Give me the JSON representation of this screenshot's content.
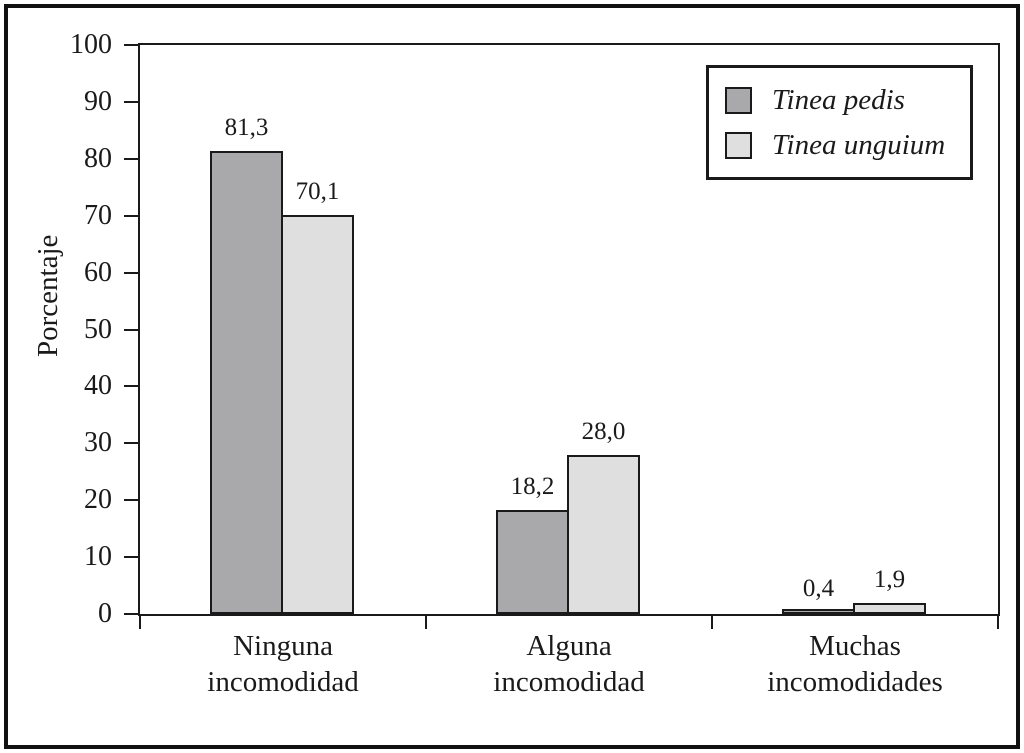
{
  "colors": {
    "background": "#ffffff",
    "frame": "#111111",
    "axis": "#1a1a1a",
    "text": "#1a1a1a"
  },
  "chart_data": {
    "type": "bar",
    "title": "",
    "ylabel": "Porcentaje",
    "xlabel": "",
    "ylim": [
      0,
      100
    ],
    "ytick_step": 10,
    "grid": false,
    "legend_position": "top-right",
    "decimal_separator": ",",
    "categories": [
      "Ninguna\nincomodidad",
      "Alguna\nincomodidad",
      "Muchas\nincomodidades"
    ],
    "series": [
      {
        "name": "Tinea pedis",
        "color": "#a9a9ab",
        "values": [
          81.3,
          18.2,
          0.4
        ],
        "labels": [
          "81,3",
          "18,2",
          "0,4"
        ]
      },
      {
        "name": "Tinea unguium",
        "color": "#dfdfdf",
        "values": [
          70.1,
          28.0,
          1.9
        ],
        "labels": [
          "70,1",
          "28,0",
          "1,9"
        ]
      }
    ]
  }
}
